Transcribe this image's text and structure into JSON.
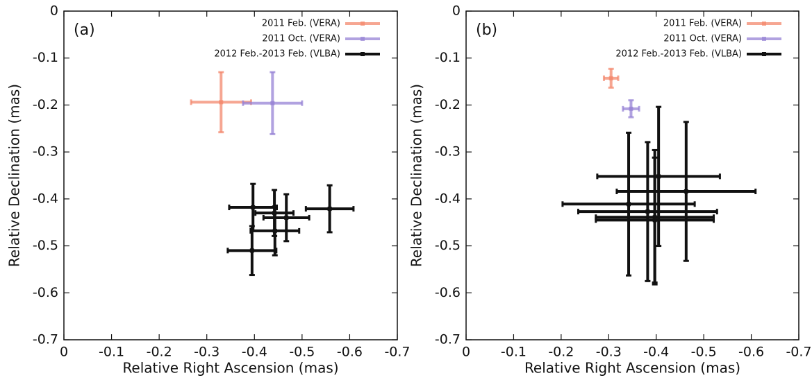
{
  "chart_data": [
    {
      "type": "scatter",
      "annotation": "(a)",
      "x_label": "Relative Right Ascension (mas)",
      "y_label": "Relative Declination (mas)",
      "xlim": [
        0,
        -0.7
      ],
      "ylim": [
        -0.7,
        0
      ],
      "xticks": [
        0,
        -0.1,
        -0.2,
        -0.3,
        -0.4,
        -0.5,
        -0.6,
        -0.7
      ],
      "yticks": [
        0,
        -0.1,
        -0.2,
        -0.3,
        -0.4,
        -0.5,
        -0.6,
        -0.7
      ],
      "legend": "upper right",
      "series": [
        {
          "name": "2011 Feb. (VERA)",
          "color": "#f4896e",
          "x": [
            -0.33
          ],
          "y": [
            -0.194
          ],
          "xerr": [
            0.063
          ],
          "yerr": [
            0.064
          ]
        },
        {
          "name": "2011 Oct. (VERA)",
          "color": "#9884d6",
          "x": [
            -0.438
          ],
          "y": [
            -0.196
          ],
          "xerr": [
            0.062
          ],
          "yerr": [
            0.066
          ]
        },
        {
          "name": "2012 Feb.-2013 Feb. (VLBA)",
          "color": "#111111",
          "x": [
            -0.397,
            -0.442,
            -0.467,
            -0.443,
            -0.395,
            -0.558
          ],
          "y": [
            -0.418,
            -0.43,
            -0.44,
            -0.468,
            -0.51,
            -0.421
          ],
          "xerr": [
            0.05,
            0.04,
            0.048,
            0.051,
            0.051,
            0.05
          ],
          "yerr": [
            0.05,
            0.049,
            0.05,
            0.052,
            0.052,
            0.05
          ]
        }
      ]
    },
    {
      "type": "scatter",
      "annotation": "(b)",
      "x_label": "Relative Right Ascension (mas)",
      "y_label": "Relative Declination (mas)",
      "xlim": [
        0,
        -0.7
      ],
      "ylim": [
        -0.7,
        0
      ],
      "xticks": [
        0,
        -0.1,
        -0.2,
        -0.3,
        -0.4,
        -0.5,
        -0.6,
        -0.7
      ],
      "yticks": [
        0,
        -0.1,
        -0.2,
        -0.3,
        -0.4,
        -0.5,
        -0.6,
        -0.7
      ],
      "legend": "upper right",
      "series": [
        {
          "name": "2011 Feb. (VERA)",
          "color": "#f4896e",
          "x": [
            -0.305
          ],
          "y": [
            -0.143
          ],
          "xerr": [
            0.015
          ],
          "yerr": [
            0.02
          ]
        },
        {
          "name": "2011 Oct. (VERA)",
          "color": "#9884d6",
          "x": [
            -0.347
          ],
          "y": [
            -0.208
          ],
          "xerr": [
            0.017
          ],
          "yerr": [
            0.018
          ]
        },
        {
          "name": "2012 Feb.-2013 Feb. (VLBA)",
          "color": "#111111",
          "x": [
            -0.342,
            -0.397,
            -0.382,
            -0.405,
            -0.463,
            -0.397
          ],
          "y": [
            -0.411,
            -0.439,
            -0.427,
            -0.352,
            -0.384,
            -0.445
          ],
          "xerr": [
            0.139,
            0.124,
            0.146,
            0.129,
            0.146,
            0.124
          ],
          "yerr": [
            0.152,
            0.143,
            0.148,
            0.148,
            0.148,
            0.133
          ]
        }
      ]
    }
  ]
}
